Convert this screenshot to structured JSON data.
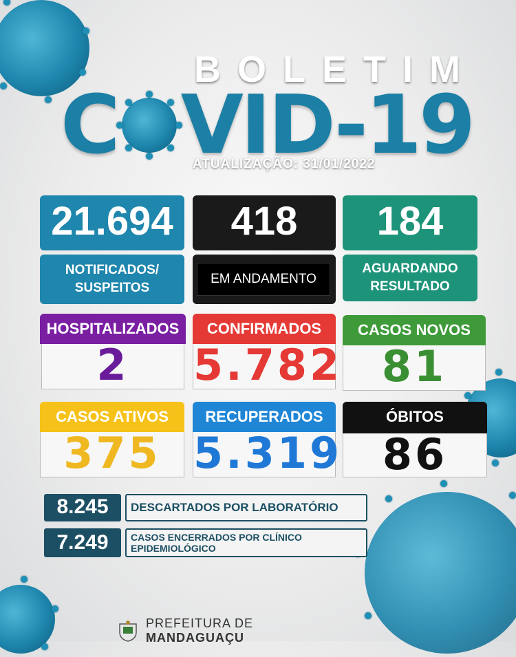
{
  "header": {
    "boletim": "BOLETIM",
    "covid_left": "C",
    "covid_right": "VID-19",
    "update": "ATUALIZAÇÃO: 31/01/2022"
  },
  "top_cards": [
    {
      "value": "21.694",
      "label_line1": "NOTIFICADOS/",
      "label_line2": "SUSPEITOS",
      "color": "#1f86ad"
    },
    {
      "value": "418",
      "label": "EM ANDAMENTO",
      "color": "#1a1a1a"
    },
    {
      "value": "184",
      "label_line1": "AGUARDANDO",
      "label_line2": "RESULTADO",
      "color": "#1d9479"
    }
  ],
  "categories": [
    {
      "title": "HOSPITALIZADOS",
      "value": "2",
      "title_color": "#7a1fa2",
      "value_color": "#6a1b9a"
    },
    {
      "title": "CONFIRMADOS",
      "value": "5.782",
      "title_color": "#e53935",
      "value_color": "#e53935"
    },
    {
      "title": "CASOS NOVOS",
      "value": "81",
      "title_color": "#3f9b3a",
      "value_color": "#3a8f32"
    },
    {
      "title": "CASOS ATIVOS",
      "value": "375",
      "title_color": "#f6c21a",
      "value_color": "#efb821"
    },
    {
      "title": "RECUPERADOS",
      "value": "5.319",
      "title_color": "#1f86d6",
      "value_color": "#1f78d6"
    },
    {
      "title": "ÓBITOS",
      "value": "86",
      "title_color": "#111111",
      "value_color": "#111111"
    }
  ],
  "summary": [
    {
      "value": "8.245",
      "label_line1": "DESCARTADOS POR LABORATÓRIO",
      "label_line2": ""
    },
    {
      "value": "7.249",
      "label_line1": "CASOS ENCERRADOS POR CLÍNICO",
      "label_line2": "EPIDEMIOLÓGICO"
    }
  ],
  "footer": {
    "prefix": "PREFEITURA DE ",
    "city": "MANDAGUAÇU"
  },
  "icons": [
    "virus-icon",
    "crest-icon"
  ]
}
